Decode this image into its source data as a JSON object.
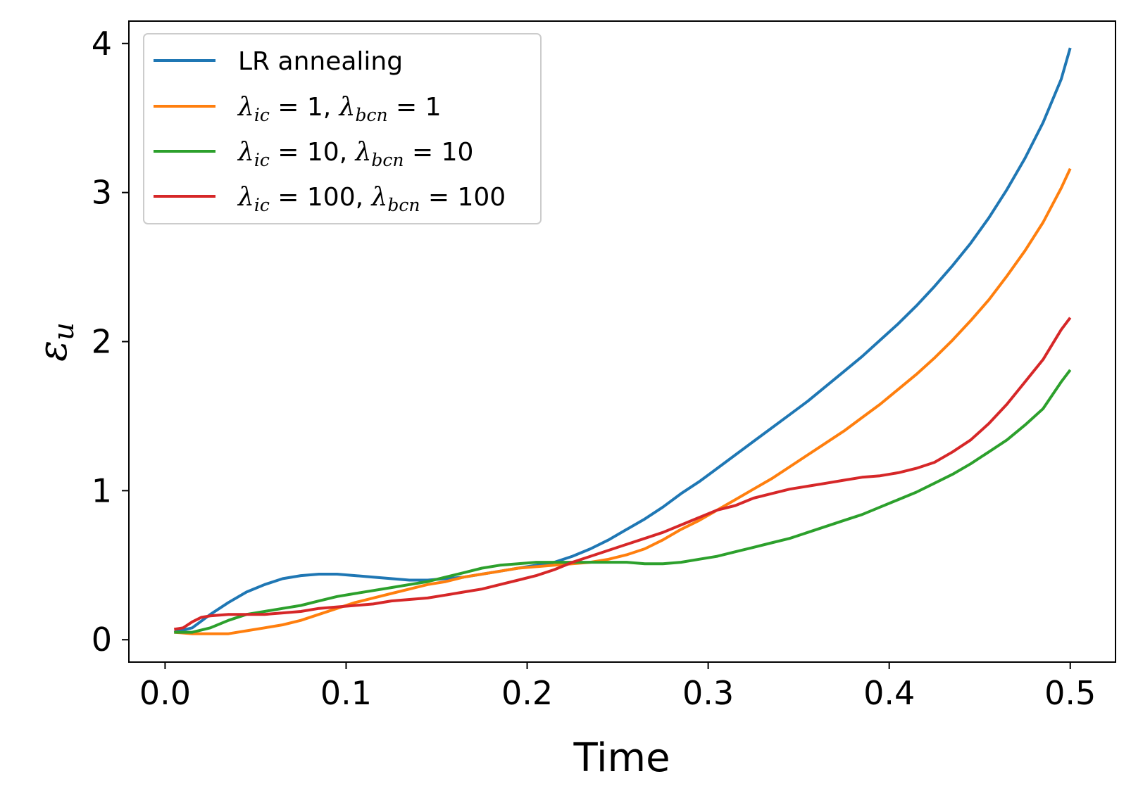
{
  "chart_data": {
    "type": "line",
    "title": "",
    "xlabel": "Time",
    "ylabel": "ε",
    "ylabel_sub": "u",
    "xlim": [
      -0.02,
      0.525
    ],
    "ylim": [
      -0.15,
      4.15
    ],
    "grid": false,
    "legend_position": "top-left",
    "x_ticks": [
      0.0,
      0.1,
      0.2,
      0.3,
      0.4,
      0.5
    ],
    "x_tick_labels": [
      "0.0",
      "0.1",
      "0.2",
      "0.3",
      "0.4",
      "0.5"
    ],
    "y_ticks": [
      0,
      1,
      2,
      3,
      4
    ],
    "y_tick_labels": [
      "0",
      "1",
      "2",
      "3",
      "4"
    ],
    "series": [
      {
        "name": "LR annealing",
        "legend_text": "LR annealing",
        "color": "#1f77b4",
        "x": [
          0.005,
          0.015,
          0.025,
          0.035,
          0.045,
          0.055,
          0.065,
          0.075,
          0.085,
          0.095,
          0.105,
          0.115,
          0.125,
          0.135,
          0.145,
          0.155,
          0.165,
          0.175,
          0.185,
          0.195,
          0.205,
          0.215,
          0.225,
          0.235,
          0.245,
          0.255,
          0.265,
          0.275,
          0.285,
          0.295,
          0.305,
          0.315,
          0.325,
          0.335,
          0.345,
          0.355,
          0.365,
          0.375,
          0.385,
          0.395,
          0.405,
          0.415,
          0.425,
          0.435,
          0.445,
          0.455,
          0.465,
          0.475,
          0.485,
          0.495,
          0.5
        ],
        "y": [
          0.05,
          0.08,
          0.17,
          0.25,
          0.32,
          0.37,
          0.41,
          0.43,
          0.44,
          0.44,
          0.43,
          0.42,
          0.41,
          0.4,
          0.4,
          0.41,
          0.42,
          0.44,
          0.46,
          0.48,
          0.5,
          0.52,
          0.56,
          0.61,
          0.67,
          0.74,
          0.81,
          0.89,
          0.98,
          1.06,
          1.15,
          1.24,
          1.33,
          1.42,
          1.51,
          1.6,
          1.7,
          1.8,
          1.9,
          2.01,
          2.12,
          2.24,
          2.37,
          2.51,
          2.66,
          2.83,
          3.02,
          3.23,
          3.47,
          3.76,
          3.97
        ]
      },
      {
        "name": "lambda_ic = 1, lambda_bcn = 1",
        "legend_text": "λic = 1, λbcn = 1",
        "legend_values": [
          "1",
          "1"
        ],
        "color": "#ff7f0e",
        "x": [
          0.005,
          0.015,
          0.025,
          0.035,
          0.045,
          0.055,
          0.065,
          0.075,
          0.085,
          0.095,
          0.105,
          0.115,
          0.125,
          0.135,
          0.145,
          0.155,
          0.165,
          0.175,
          0.185,
          0.195,
          0.205,
          0.215,
          0.225,
          0.235,
          0.245,
          0.255,
          0.265,
          0.275,
          0.285,
          0.295,
          0.305,
          0.315,
          0.325,
          0.335,
          0.345,
          0.355,
          0.365,
          0.375,
          0.385,
          0.395,
          0.405,
          0.415,
          0.425,
          0.435,
          0.445,
          0.455,
          0.465,
          0.475,
          0.485,
          0.495,
          0.5
        ],
        "y": [
          0.05,
          0.04,
          0.04,
          0.04,
          0.06,
          0.08,
          0.1,
          0.13,
          0.17,
          0.21,
          0.25,
          0.28,
          0.31,
          0.34,
          0.37,
          0.39,
          0.42,
          0.44,
          0.46,
          0.48,
          0.49,
          0.5,
          0.51,
          0.52,
          0.54,
          0.57,
          0.61,
          0.67,
          0.74,
          0.8,
          0.87,
          0.94,
          1.01,
          1.08,
          1.16,
          1.24,
          1.32,
          1.4,
          1.49,
          1.58,
          1.68,
          1.78,
          1.89,
          2.01,
          2.14,
          2.28,
          2.44,
          2.61,
          2.8,
          3.03,
          3.16
        ]
      },
      {
        "name": "lambda_ic = 10, lambda_bcn = 10",
        "legend_text": "λic = 10, λbcn = 10",
        "legend_values": [
          "10",
          "10"
        ],
        "color": "#2ca02c",
        "x": [
          0.005,
          0.015,
          0.025,
          0.035,
          0.045,
          0.055,
          0.065,
          0.075,
          0.085,
          0.095,
          0.105,
          0.115,
          0.125,
          0.135,
          0.145,
          0.155,
          0.165,
          0.175,
          0.185,
          0.195,
          0.205,
          0.215,
          0.225,
          0.235,
          0.245,
          0.255,
          0.265,
          0.275,
          0.285,
          0.295,
          0.305,
          0.315,
          0.325,
          0.335,
          0.345,
          0.355,
          0.365,
          0.375,
          0.385,
          0.395,
          0.405,
          0.415,
          0.425,
          0.435,
          0.445,
          0.455,
          0.465,
          0.475,
          0.485,
          0.495,
          0.5
        ],
        "y": [
          0.05,
          0.05,
          0.08,
          0.13,
          0.17,
          0.19,
          0.21,
          0.23,
          0.26,
          0.29,
          0.31,
          0.33,
          0.35,
          0.37,
          0.39,
          0.42,
          0.45,
          0.48,
          0.5,
          0.51,
          0.52,
          0.52,
          0.52,
          0.52,
          0.52,
          0.52,
          0.51,
          0.51,
          0.52,
          0.54,
          0.56,
          0.59,
          0.62,
          0.65,
          0.68,
          0.72,
          0.76,
          0.8,
          0.84,
          0.89,
          0.94,
          0.99,
          1.05,
          1.11,
          1.18,
          1.26,
          1.34,
          1.44,
          1.55,
          1.73,
          1.81
        ]
      },
      {
        "name": "lambda_ic = 100, lambda_bcn = 100",
        "legend_text": "λic = 100, λbcn = 100",
        "legend_values": [
          "100",
          "100"
        ],
        "color": "#d62728",
        "x": [
          0.005,
          0.01,
          0.015,
          0.02,
          0.025,
          0.035,
          0.045,
          0.055,
          0.065,
          0.075,
          0.085,
          0.095,
          0.105,
          0.115,
          0.125,
          0.135,
          0.145,
          0.155,
          0.165,
          0.175,
          0.185,
          0.195,
          0.205,
          0.215,
          0.225,
          0.235,
          0.245,
          0.255,
          0.265,
          0.275,
          0.285,
          0.295,
          0.305,
          0.315,
          0.325,
          0.335,
          0.345,
          0.355,
          0.365,
          0.375,
          0.385,
          0.395,
          0.405,
          0.415,
          0.425,
          0.435,
          0.445,
          0.455,
          0.465,
          0.475,
          0.485,
          0.495,
          0.5
        ],
        "y": [
          0.07,
          0.08,
          0.12,
          0.15,
          0.16,
          0.17,
          0.17,
          0.17,
          0.18,
          0.19,
          0.21,
          0.22,
          0.23,
          0.24,
          0.26,
          0.27,
          0.28,
          0.3,
          0.32,
          0.34,
          0.37,
          0.4,
          0.43,
          0.47,
          0.52,
          0.56,
          0.6,
          0.64,
          0.68,
          0.72,
          0.77,
          0.82,
          0.87,
          0.9,
          0.95,
          0.98,
          1.01,
          1.03,
          1.05,
          1.07,
          1.09,
          1.1,
          1.12,
          1.15,
          1.19,
          1.26,
          1.34,
          1.45,
          1.58,
          1.73,
          1.88,
          2.08,
          2.16
        ]
      }
    ]
  }
}
